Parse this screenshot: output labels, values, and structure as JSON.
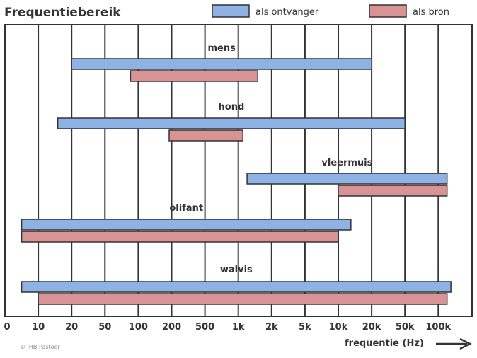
{
  "chart_data": {
    "type": "bar",
    "orientation": "horizontal-range",
    "title": "Frequentiebereik",
    "xlabel": "frequentie (Hz)",
    "x_scale": "log",
    "ticks": [
      {
        "value": 0,
        "label": "0"
      },
      {
        "value": 10,
        "label": "10"
      },
      {
        "value": 20,
        "label": "20"
      },
      {
        "value": 50,
        "label": "50"
      },
      {
        "value": 100,
        "label": "100"
      },
      {
        "value": 200,
        "label": "200"
      },
      {
        "value": 500,
        "label": "500"
      },
      {
        "value": 1000,
        "label": "1k"
      },
      {
        "value": 2000,
        "label": "2k"
      },
      {
        "value": 5000,
        "label": "5k"
      },
      {
        "value": 10000,
        "label": "10k"
      },
      {
        "value": 20000,
        "label": "20k"
      },
      {
        "value": 50000,
        "label": "50k"
      },
      {
        "value": 100000,
        "label": "100k"
      }
    ],
    "legend": [
      {
        "name": "als ontvanger",
        "color": "#8fb2e4"
      },
      {
        "name": "als bron",
        "color": "#d99394"
      }
    ],
    "legend_position": "top",
    "grid": "vertical",
    "categories": [
      "mens",
      "hond",
      "vleermuis",
      "olifant",
      "walvis"
    ],
    "series": [
      {
        "name": "als ontvanger",
        "color": "#8fb2e4",
        "ranges": [
          [
            20,
            20000
          ],
          [
            15,
            50000
          ],
          [
            1200,
            120000
          ],
          [
            5,
            13000
          ],
          [
            5,
            130000
          ]
        ]
      },
      {
        "name": "als bron",
        "color": "#d99394",
        "ranges": [
          [
            85,
            1500
          ],
          [
            190,
            1100
          ],
          [
            10000,
            120000
          ],
          [
            5,
            10000
          ],
          [
            10,
            120000
          ]
        ]
      }
    ]
  },
  "copyright": "© JHB Pastoor"
}
